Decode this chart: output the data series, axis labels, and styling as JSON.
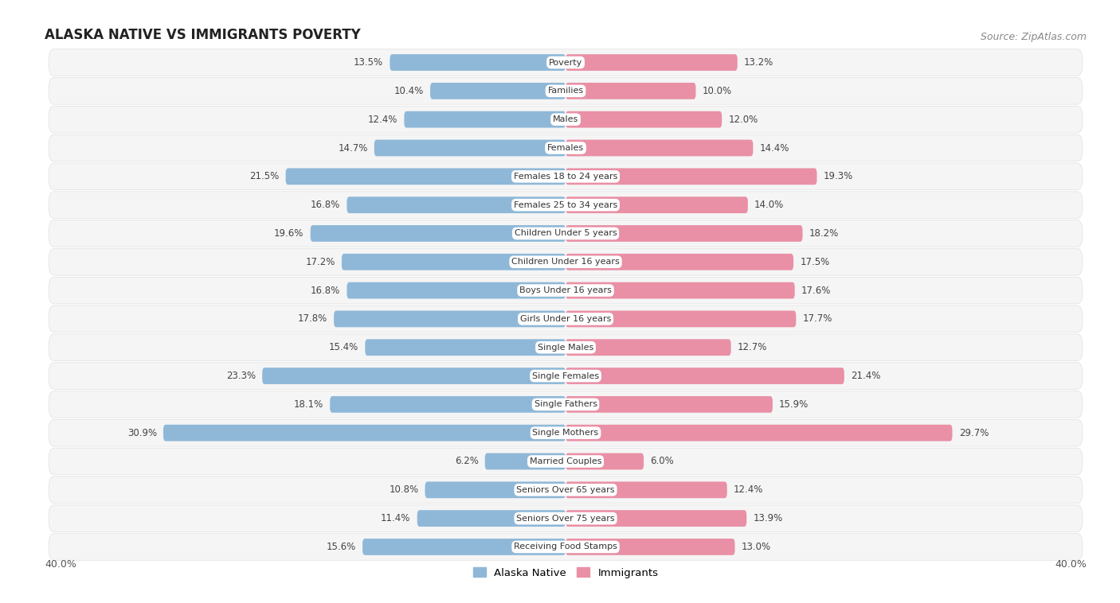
{
  "title": "ALASKA NATIVE VS IMMIGRANTS POVERTY",
  "source": "Source: ZipAtlas.com",
  "categories": [
    "Poverty",
    "Families",
    "Males",
    "Females",
    "Females 18 to 24 years",
    "Females 25 to 34 years",
    "Children Under 5 years",
    "Children Under 16 years",
    "Boys Under 16 years",
    "Girls Under 16 years",
    "Single Males",
    "Single Females",
    "Single Fathers",
    "Single Mothers",
    "Married Couples",
    "Seniors Over 65 years",
    "Seniors Over 75 years",
    "Receiving Food Stamps"
  ],
  "alaska_native": [
    13.5,
    10.4,
    12.4,
    14.7,
    21.5,
    16.8,
    19.6,
    17.2,
    16.8,
    17.8,
    15.4,
    23.3,
    18.1,
    30.9,
    6.2,
    10.8,
    11.4,
    15.6
  ],
  "immigrants": [
    13.2,
    10.0,
    12.0,
    14.4,
    19.3,
    14.0,
    18.2,
    17.5,
    17.6,
    17.7,
    12.7,
    21.4,
    15.9,
    29.7,
    6.0,
    12.4,
    13.9,
    13.0
  ],
  "alaska_color": "#8fb8d8",
  "immigrants_color": "#e990a6",
  "background_color": "#ffffff",
  "row_bg": "#f5f5f5",
  "row_separator": "#e0e0e0",
  "x_max": 40.0,
  "legend_label_left": "Alaska Native",
  "legend_label_right": "Immigrants",
  "title_fontsize": 12,
  "source_fontsize": 9,
  "bar_height": 0.58
}
